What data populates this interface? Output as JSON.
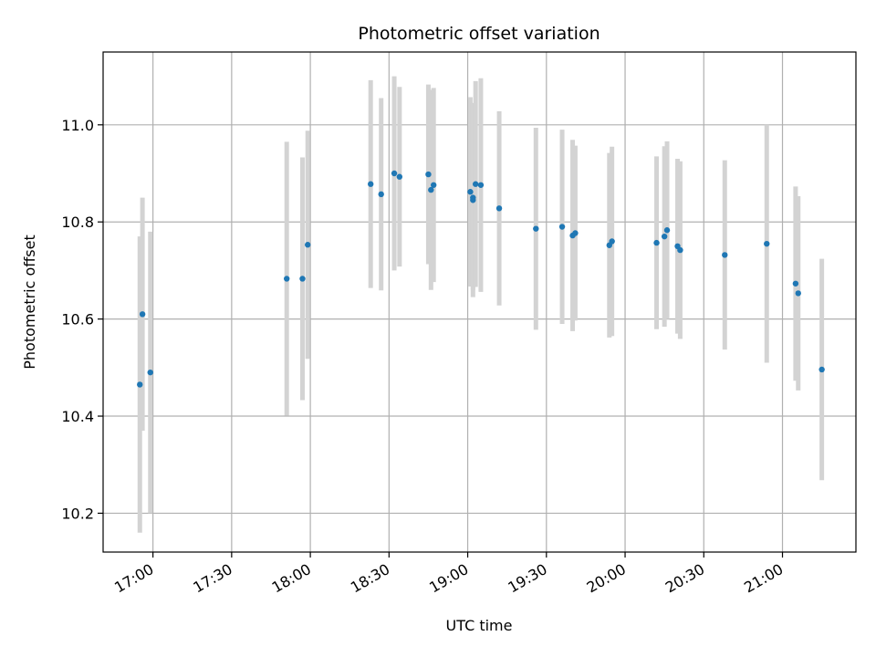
{
  "chart_data": {
    "type": "scatter",
    "title": "Photometric offset variation",
    "xlabel": "UTC time",
    "ylabel": "Photometric offset",
    "x_tick_labels": [
      "17:00",
      "17:30",
      "18:00",
      "18:30",
      "19:00",
      "19:30",
      "20:00",
      "20:30",
      "21:00"
    ],
    "y_tick_labels": [
      "10.2",
      "10.4",
      "10.6",
      "10.8",
      "11.0"
    ],
    "xlim": [
      "16:41",
      "21:28"
    ],
    "ylim": [
      10.12,
      11.15
    ],
    "grid": true,
    "errorbar_color": "#d3d3d3",
    "point_color": "#1f77b4",
    "series": [
      {
        "points": [
          {
            "x": "16:55",
            "y": 10.465,
            "err": 0.305
          },
          {
            "x": "16:56",
            "y": 10.61,
            "err": 0.24
          },
          {
            "x": "16:59",
            "y": 10.49,
            "err": 0.29
          },
          {
            "x": "17:51",
            "y": 10.683,
            "err": 0.282
          },
          {
            "x": "17:57",
            "y": 10.683,
            "err": 0.25
          },
          {
            "x": "17:59",
            "y": 10.753,
            "err": 0.235
          },
          {
            "x": "18:23",
            "y": 10.878,
            "err": 0.214
          },
          {
            "x": "18:27",
            "y": 10.857,
            "err": 0.198
          },
          {
            "x": "18:32",
            "y": 10.9,
            "err": 0.2
          },
          {
            "x": "18:34",
            "y": 10.893,
            "err": 0.185
          },
          {
            "x": "18:45",
            "y": 10.898,
            "err": 0.185
          },
          {
            "x": "18:46",
            "y": 10.866,
            "err": 0.206
          },
          {
            "x": "18:47",
            "y": 10.876,
            "err": 0.2
          },
          {
            "x": "19:01",
            "y": 10.862,
            "err": 0.195
          },
          {
            "x": "19:02",
            "y": 10.845,
            "err": 0.2
          },
          {
            "x": "19:02",
            "y": 10.85,
            "err": 0.19
          },
          {
            "x": "19:03",
            "y": 10.878,
            "err": 0.212
          },
          {
            "x": "19:05",
            "y": 10.876,
            "err": 0.22
          },
          {
            "x": "19:12",
            "y": 10.828,
            "err": 0.2
          },
          {
            "x": "19:26",
            "y": 10.786,
            "err": 0.208
          },
          {
            "x": "19:36",
            "y": 10.79,
            "err": 0.2
          },
          {
            "x": "19:40",
            "y": 10.772,
            "err": 0.197
          },
          {
            "x": "19:41",
            "y": 10.777,
            "err": 0.18
          },
          {
            "x": "19:54",
            "y": 10.752,
            "err": 0.19
          },
          {
            "x": "19:55",
            "y": 10.76,
            "err": 0.195
          },
          {
            "x": "20:12",
            "y": 10.757,
            "err": 0.178
          },
          {
            "x": "20:15",
            "y": 10.77,
            "err": 0.186
          },
          {
            "x": "20:16",
            "y": 10.783,
            "err": 0.183
          },
          {
            "x": "20:20",
            "y": 10.75,
            "err": 0.18
          },
          {
            "x": "20:21",
            "y": 10.742,
            "err": 0.183
          },
          {
            "x": "20:38",
            "y": 10.732,
            "err": 0.195
          },
          {
            "x": "20:54",
            "y": 10.755,
            "err": 0.245
          },
          {
            "x": "21:05",
            "y": 10.673,
            "err": 0.2
          },
          {
            "x": "21:06",
            "y": 10.653,
            "err": 0.2
          },
          {
            "x": "21:15",
            "y": 10.496,
            "err": 0.228
          }
        ]
      }
    ]
  }
}
